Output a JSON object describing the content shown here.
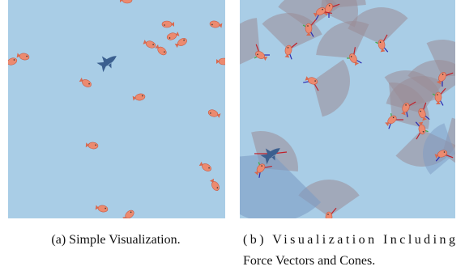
{
  "figure": {
    "captions": {
      "a": "(a) Simple Visualization.",
      "b": [
        "(b) Visualization Including",
        "Force Vectors and Cones."
      ]
    }
  }
}
